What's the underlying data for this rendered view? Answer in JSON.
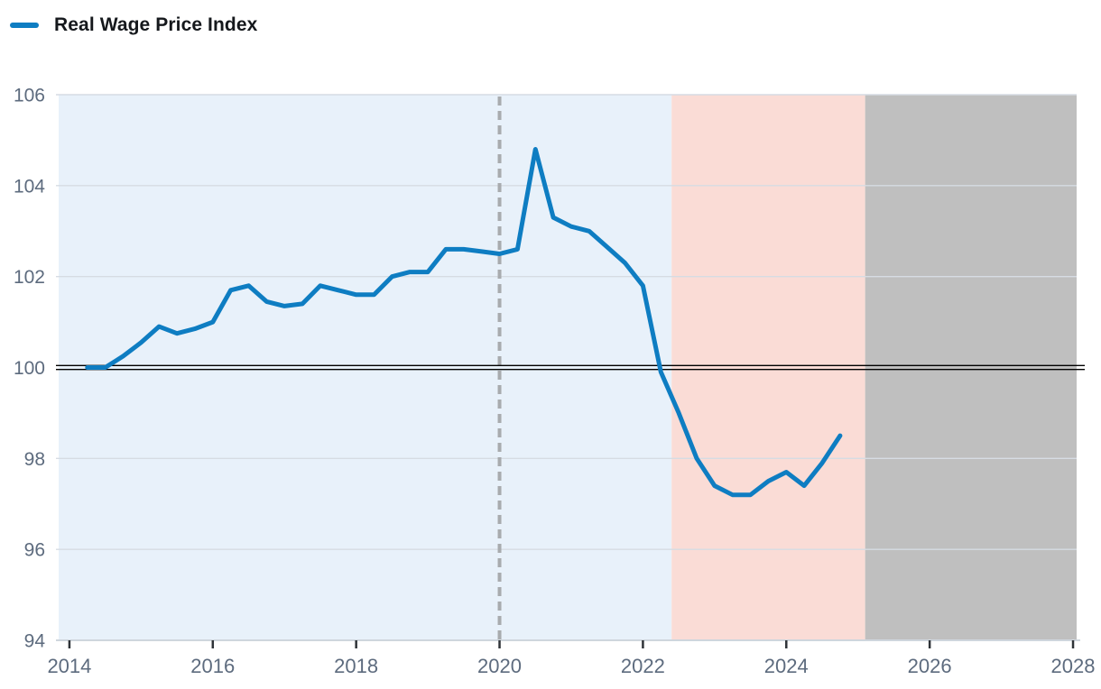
{
  "chart_data": {
    "type": "line",
    "title": "",
    "legend_label": "Real Wage Price Index",
    "legend_position": "top-left",
    "grid": true,
    "x_ticks": [
      2014,
      2016,
      2018,
      2020,
      2022,
      2024,
      2026,
      2028
    ],
    "y_ticks": [
      94,
      96,
      98,
      100,
      102,
      104,
      106
    ],
    "x_range": [
      2013.85,
      2028.05
    ],
    "y_range": [
      94,
      106
    ],
    "reference_line_y": 100,
    "dashed_vline_x": 2020,
    "bands": [
      {
        "id": "blue-band",
        "from": 2013.85,
        "to": 2022.4,
        "color": "#e8f1fa"
      },
      {
        "id": "pink-band",
        "from": 2022.4,
        "to": 2025.1,
        "color": "#fadcd6"
      },
      {
        "id": "gray-band",
        "from": 2025.1,
        "to": 2028.05,
        "color": "#bfbfbf"
      }
    ],
    "series": [
      {
        "name": "Real Wage Price Index",
        "color": "#0e7dc2",
        "points": [
          [
            2014.25,
            100.0
          ],
          [
            2014.5,
            100.0
          ],
          [
            2014.75,
            100.25
          ],
          [
            2015.0,
            100.55
          ],
          [
            2015.25,
            100.9
          ],
          [
            2015.5,
            100.75
          ],
          [
            2015.75,
            100.85
          ],
          [
            2016.0,
            101.0
          ],
          [
            2016.25,
            101.7
          ],
          [
            2016.5,
            101.8
          ],
          [
            2016.75,
            101.45
          ],
          [
            2017.0,
            101.35
          ],
          [
            2017.25,
            101.4
          ],
          [
            2017.5,
            101.8
          ],
          [
            2017.75,
            101.7
          ],
          [
            2018.0,
            101.6
          ],
          [
            2018.25,
            101.6
          ],
          [
            2018.5,
            102.0
          ],
          [
            2018.75,
            102.1
          ],
          [
            2019.0,
            102.1
          ],
          [
            2019.25,
            102.6
          ],
          [
            2019.5,
            102.6
          ],
          [
            2019.75,
            102.55
          ],
          [
            2020.0,
            102.5
          ],
          [
            2020.25,
            102.6
          ],
          [
            2020.5,
            104.8
          ],
          [
            2020.75,
            103.3
          ],
          [
            2021.0,
            103.1
          ],
          [
            2021.25,
            103.0
          ],
          [
            2021.5,
            102.65
          ],
          [
            2021.75,
            102.3
          ],
          [
            2022.0,
            101.8
          ],
          [
            2022.25,
            99.9
          ],
          [
            2022.5,
            99.0
          ],
          [
            2022.75,
            98.0
          ],
          [
            2023.0,
            97.4
          ],
          [
            2023.25,
            97.2
          ],
          [
            2023.5,
            97.2
          ],
          [
            2023.75,
            97.5
          ],
          [
            2024.0,
            97.7
          ],
          [
            2024.25,
            97.4
          ],
          [
            2024.5,
            97.9
          ],
          [
            2024.75,
            98.5
          ]
        ]
      }
    ]
  },
  "colors": {
    "line": "#0e7dc2",
    "band_blue": "#e8f1fa",
    "band_pink": "#fadcd6",
    "band_gray": "#bfbfbf",
    "grid": "#d6dce3",
    "axis_line": "#cfd6dd",
    "tick_label": "#5d6b7e",
    "tick_mark": "#2f3338",
    "legend_text": "#15181c",
    "dashed_line": "#a8abae",
    "baseline": "#000000"
  }
}
